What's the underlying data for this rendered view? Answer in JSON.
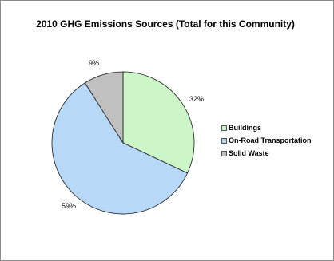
{
  "chart_data": {
    "type": "pie",
    "title": "2010 GHG Emissions Sources (Total for this Community)",
    "categories": [
      "Buildings",
      "On-Road Transportation",
      "Solid Waste"
    ],
    "values": [
      32,
      59,
      9
    ],
    "labels": [
      "32%",
      "59%",
      "9%"
    ],
    "colors": [
      "#ccf5c8",
      "#b8d8f7",
      "#c0c0c0"
    ],
    "legend_position": "right"
  }
}
